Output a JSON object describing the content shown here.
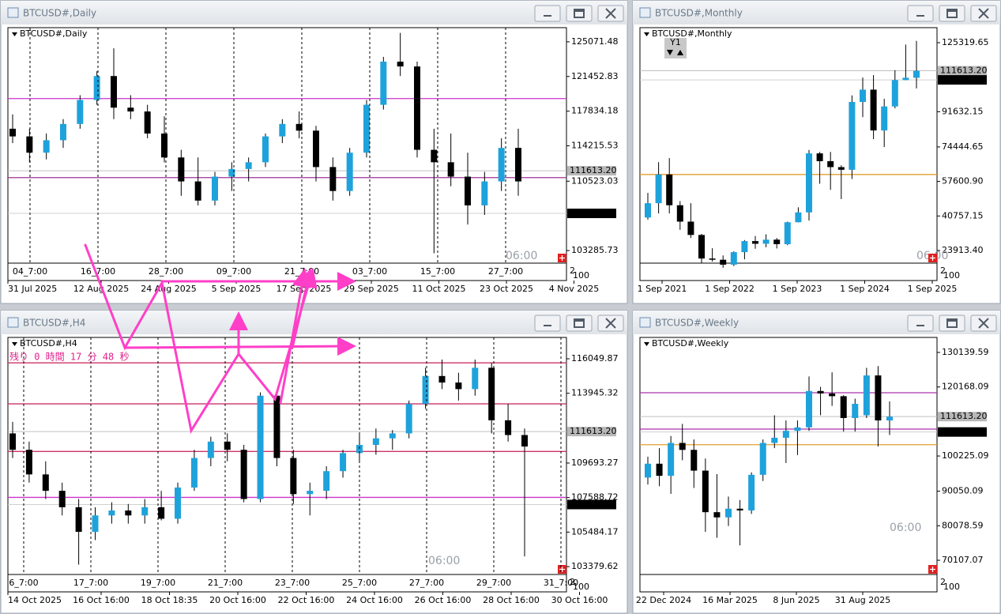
{
  "windows": [
    {
      "title": "BTCUSD#,Daily",
      "yticks": [
        125071.48,
        121452.83,
        117834.18,
        114215.53,
        110523.03,
        103285.73
      ],
      "ylim": [
        101970,
        126550
      ],
      "bid": {
        "value": 111613.2,
        "label": "111613.20"
      },
      "line": {
        "value": 107164.6,
        "label": "107164.60"
      },
      "levels": [
        {
          "value": 119150,
          "color": "#cc33cc"
        },
        {
          "value": 110900,
          "color": "#a03399"
        }
      ],
      "overlay": "06:00",
      "sub_scale": [
        "2",
        "100"
      ],
      "time_labels": [
        "31 Jul 2025",
        "12 Aug 2025",
        "24 Aug 2025",
        "5 Sep 2025",
        "17 Sep 2025",
        "29 Sep 2025",
        "11 Oct 2025",
        "23 Oct 2025",
        "4 Nov 2025"
      ],
      "sub_labels": [
        "04_7:00",
        "16_7:00",
        "28_7:00",
        "09_7:00",
        "21_7:00",
        "03_7:00",
        "15_7:00",
        "27_7:00"
      ],
      "ohlc": [
        [
          116000,
          117500,
          114500,
          115200
        ],
        [
          115200,
          116000,
          112500,
          113500
        ],
        [
          113500,
          115500,
          112800,
          114800
        ],
        [
          114800,
          117000,
          114000,
          116500
        ],
        [
          116500,
          119500,
          116000,
          119000
        ],
        [
          119000,
          122000,
          118500,
          121500
        ],
        [
          121500,
          124400,
          117000,
          118200
        ],
        [
          118200,
          119500,
          117000,
          117800
        ],
        [
          117800,
          118500,
          115000,
          115500
        ],
        [
          115500,
          117300,
          112500,
          113000
        ],
        [
          113000,
          113800,
          109000,
          110500
        ],
        [
          110500,
          113000,
          108000,
          108500
        ],
        [
          108500,
          111500,
          108000,
          111000
        ],
        [
          111000,
          112500,
          109500,
          111800
        ],
        [
          111800,
          113000,
          110500,
          112500
        ],
        [
          112500,
          115500,
          112000,
          115200
        ],
        [
          115200,
          117000,
          114500,
          116500
        ],
        [
          116500,
          117800,
          115000,
          115800
        ],
        [
          115800,
          116300,
          110500,
          112000
        ],
        [
          112000,
          113000,
          108500,
          109500
        ],
        [
          109500,
          114000,
          109000,
          113500
        ],
        [
          113500,
          119000,
          113000,
          118500
        ],
        [
          118500,
          123500,
          118000,
          123000
        ],
        [
          123000,
          126000,
          121500,
          122500
        ],
        [
          122500,
          123000,
          113000,
          113800
        ],
        [
          113800,
          116000,
          103000,
          112500
        ],
        [
          112500,
          115500,
          110000,
          111000
        ],
        [
          111000,
          113500,
          106000,
          108000
        ],
        [
          108000,
          111500,
          107000,
          110500
        ],
        [
          110500,
          115000,
          109500,
          114000
        ],
        [
          114000,
          116000,
          109000,
          110500
        ]
      ]
    },
    {
      "title": "BTCUSD#,Monthly",
      "button": "Y1",
      "yticks": [
        125319.65,
        91632.15,
        74444.65,
        {
          "value": 57600.9,
          "label": "57600.90"
        },
        40757.15,
        {
          "value": 23913.4,
          "label": "23913.40"
        }
      ],
      "ylim": [
        17740,
        132650
      ],
      "bid": {
        "value": 111613.2,
        "label": "111613.20"
      },
      "line": {
        "value": 107164.6,
        "label": "107164.60"
      },
      "levels": [
        {
          "value": 61000,
          "color": "#e0a030"
        }
      ],
      "overlay": "06:00",
      "sub_scale": [
        "2",
        "100"
      ],
      "time_labels": [
        "1 Sep 2021",
        "1 Sep 2022",
        "1 Sep 2023",
        "1 Sep 2024",
        "1 Sep 2025"
      ],
      "ohlc": [
        [
          40000,
          52000,
          39000,
          47000
        ],
        [
          47000,
          67000,
          42000,
          61000
        ],
        [
          61000,
          69000,
          42000,
          46000
        ],
        [
          46000,
          48000,
          34000,
          38000
        ],
        [
          38000,
          47000,
          30000,
          31500
        ],
        [
          31500,
          32000,
          17600,
          20000
        ],
        [
          20000,
          25000,
          18500,
          19400
        ],
        [
          19400,
          21500,
          15500,
          17000
        ],
        [
          17000,
          23500,
          16300,
          23100
        ],
        [
          23100,
          29000,
          19600,
          28500
        ],
        [
          28500,
          31000,
          24800,
          27200
        ],
        [
          27200,
          31800,
          25500,
          29200
        ],
        [
          29200,
          30000,
          24900,
          27000
        ],
        [
          27000,
          38000,
          26500,
          37700
        ],
        [
          37700,
          45000,
          37600,
          42500
        ],
        [
          42500,
          73000,
          38500,
          71300
        ],
        [
          71300,
          72000,
          56500,
          67500
        ],
        [
          67500,
          72000,
          53500,
          64600
        ],
        [
          64600,
          65500,
          49000,
          63300
        ],
        [
          63300,
          99600,
          58800,
          96400
        ],
        [
          96400,
          108300,
          89000,
          102400
        ],
        [
          102400,
          109500,
          78300,
          82500
        ],
        [
          82500,
          97900,
          74400,
          94200
        ],
        [
          94200,
          111900,
          93300,
          107100
        ],
        [
          107100,
          124400,
          107000,
          108200
        ],
        [
          108200,
          126200,
          103000,
          111600
        ]
      ]
    },
    {
      "title": "BTCUSD#,H4",
      "countdown": "残り 0 時間 17 分 48 秒",
      "yticks": [
        116049.87,
        113945.32,
        109693.27,
        107588.72,
        105484.17,
        103379.62
      ],
      "ylim": [
        102900,
        117350
      ],
      "bid": {
        "value": 111613.2,
        "label": "111613.20"
      },
      "line": {
        "value": 107164.6,
        "label": "107164.60"
      },
      "levels": [
        {
          "value": 115800,
          "color": "#cc3366"
        },
        {
          "value": 113300,
          "color": "#cc3366"
        },
        {
          "value": 110400,
          "color": "#cc3366"
        },
        {
          "value": 107600,
          "color": "#cc33cc"
        }
      ],
      "overlay": "06:00",
      "sub_scale": [
        "2",
        "100"
      ],
      "time_labels": [
        "14 Oct 2025",
        "16 Oct 16:00",
        "18 Oct 18:35",
        "20 Oct 16:00",
        "22 Oct 16:00",
        "24 Oct 16:00",
        "26 Oct 16:00",
        "28 Oct 16:00",
        "30 Oct 16:00"
      ],
      "sub_labels": [
        "6_7:00",
        "17_7:00",
        "19_7:00",
        "21_7:00",
        "23_7:00",
        "25_7:00",
        "27_7:00",
        "29_7:00",
        "31_7:00"
      ],
      "ohlc": [
        [
          111500,
          112200,
          110000,
          110500
        ],
        [
          110500,
          111000,
          108500,
          109000
        ],
        [
          109000,
          109800,
          107500,
          108000
        ],
        [
          108000,
          108500,
          106500,
          107000
        ],
        [
          107000,
          107500,
          103500,
          105500
        ],
        [
          105500,
          107000,
          105000,
          106500
        ],
        [
          106500,
          107300,
          106000,
          106800
        ],
        [
          106800,
          107200,
          106000,
          106500
        ],
        [
          106500,
          107500,
          106000,
          107000
        ],
        [
          107000,
          108000,
          106200,
          106300
        ],
        [
          106300,
          108500,
          106000,
          108200
        ],
        [
          108200,
          110500,
          108000,
          110000
        ],
        [
          110000,
          111300,
          109500,
          111000
        ],
        [
          111000,
          111500,
          109800,
          110500
        ],
        [
          110500,
          110800,
          107300,
          107500
        ],
        [
          107500,
          114000,
          107300,
          113800
        ],
        [
          113800,
          113900,
          109500,
          110000
        ],
        [
          110000,
          110500,
          107200,
          107800
        ],
        [
          107800,
          108500,
          106500,
          108000
        ],
        [
          108000,
          109500,
          107500,
          109200
        ],
        [
          109200,
          110500,
          108800,
          110300
        ],
        [
          110300,
          111500,
          109800,
          110800
        ],
        [
          110800,
          111800,
          110200,
          111200
        ],
        [
          111200,
          111700,
          110500,
          111500
        ],
        [
          111500,
          113500,
          111200,
          113300
        ],
        [
          113300,
          115500,
          113000,
          115000
        ],
        [
          115000,
          116000,
          114200,
          114600
        ],
        [
          114600,
          115200,
          113500,
          114200
        ],
        [
          114200,
          116000,
          113800,
          115500
        ],
        [
          115500,
          115800,
          111500,
          112300
        ],
        [
          112300,
          113300,
          111000,
          111400
        ],
        [
          111400,
          111800,
          104000,
          110700
        ]
      ]
    },
    {
      "title": "BTCUSD#,Weekly",
      "yticks": [
        130139.59,
        120168.09,
        100225.09,
        90050.09,
        80078.59,
        70107.07
      ],
      "ylim": [
        66000,
        134480
      ],
      "bid": {
        "value": 111613.2,
        "label": "111613.20"
      },
      "line": {
        "value": 107164.6,
        "label": "107164.60"
      },
      "levels": [
        {
          "value": 118500,
          "color": "#aa33aa"
        },
        {
          "value": 108000,
          "color": "#aa33aa"
        },
        {
          "value": 103500,
          "color": "#e0a030"
        }
      ],
      "overlay": "06:00",
      "sub_scale": [
        "2",
        "100"
      ],
      "time_labels": [
        "22 Dec 2024",
        "16 Mar 2025",
        "8 Jun 2025",
        "31 Aug 2025"
      ],
      "ohlc": [
        [
          94000,
          100000,
          92000,
          98000
        ],
        [
          98000,
          102500,
          91500,
          94500
        ],
        [
          94500,
          106000,
          89300,
          104000
        ],
        [
          104000,
          109500,
          99000,
          102000
        ],
        [
          102000,
          105000,
          91000,
          96000
        ],
        [
          96000,
          99500,
          78300,
          84000
        ],
        [
          84000,
          95000,
          76600,
          82500
        ],
        [
          82500,
          88500,
          80000,
          85000
        ],
        [
          85000,
          87500,
          74400,
          84500
        ],
        [
          84500,
          95500,
          83500,
          94800
        ],
        [
          94800,
          105000,
          93000,
          104000
        ],
        [
          104000,
          112000,
          102500,
          105500
        ],
        [
          105500,
          110500,
          98200,
          107500
        ],
        [
          107500,
          110500,
          100500,
          108500
        ],
        [
          108500,
          123200,
          107500,
          119000
        ],
        [
          119000,
          120200,
          112000,
          118300
        ],
        [
          118300,
          124400,
          114700,
          117500
        ],
        [
          117500,
          117800,
          107300,
          111200
        ],
        [
          111200,
          116800,
          107300,
          115300
        ],
        [
          112000,
          125700,
          111200,
          123500
        ],
        [
          123500,
          126200,
          103000,
          110500
        ],
        [
          110500,
          116000,
          106300,
          111600
        ]
      ]
    }
  ]
}
